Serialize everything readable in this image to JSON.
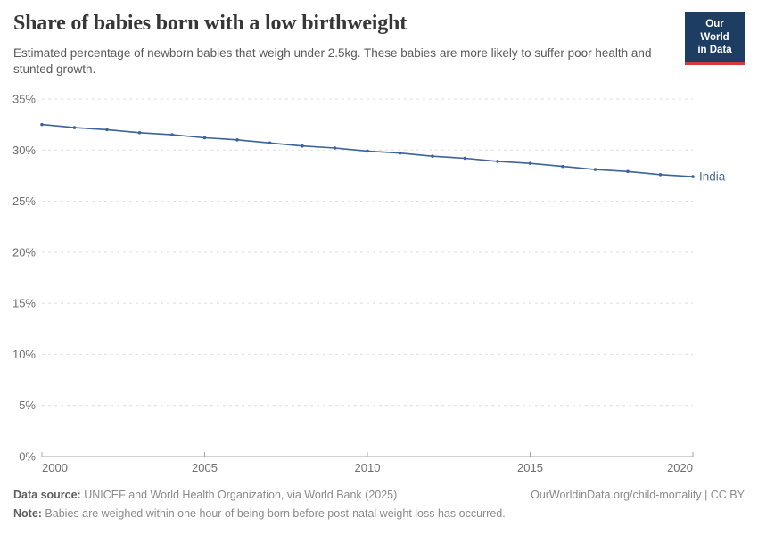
{
  "header": {
    "title": "Share of babies born with a low birthweight",
    "subtitle": "Estimated percentage of newborn babies that weigh under 2.5kg. These babies are more likely to suffer poor health and stunted growth.",
    "logo": {
      "line1": "Our World",
      "line2": "in Data",
      "bg_color": "#1d3d63",
      "stripe_color": "#d43b3f"
    }
  },
  "chart_data": {
    "type": "line",
    "title": "Share of babies born with a low birthweight",
    "xlabel": "",
    "ylabel": "",
    "unit": "%",
    "xlim": [
      2000,
      2020
    ],
    "ylim": [
      0,
      35
    ],
    "yticks": [
      0,
      5,
      10,
      15,
      20,
      25,
      30,
      35
    ],
    "xticks": [
      2000,
      2005,
      2010,
      2015,
      2020
    ],
    "grid": "dashed-horizontal",
    "legend_position": "line-end-label",
    "colors": {
      "line": "#3d6399",
      "entity_label": "#4c6a9c",
      "tick_label": "#6e6e6e",
      "gridline": "#dedede",
      "axis": "#a6a6a6"
    },
    "series": [
      {
        "name": "India",
        "x": [
          2000,
          2001,
          2002,
          2003,
          2004,
          2005,
          2006,
          2007,
          2008,
          2009,
          2010,
          2011,
          2012,
          2013,
          2014,
          2015,
          2016,
          2017,
          2018,
          2019,
          2020
        ],
        "values": [
          32.5,
          32.2,
          32.0,
          31.7,
          31.5,
          31.2,
          31.0,
          30.7,
          30.4,
          30.2,
          29.9,
          29.7,
          29.4,
          29.2,
          28.9,
          28.7,
          28.4,
          28.1,
          27.9,
          27.6,
          27.4
        ]
      }
    ]
  },
  "footer": {
    "data_source_label": "Data source:",
    "data_source_text": " UNICEF and World Health Organization, via World Bank (2025)",
    "link_text": "OurWorldinData.org/child-mortality | CC BY",
    "note_label": "Note:",
    "note_text": " Babies are weighed within one hour of being born before post-natal weight loss has occurred."
  }
}
